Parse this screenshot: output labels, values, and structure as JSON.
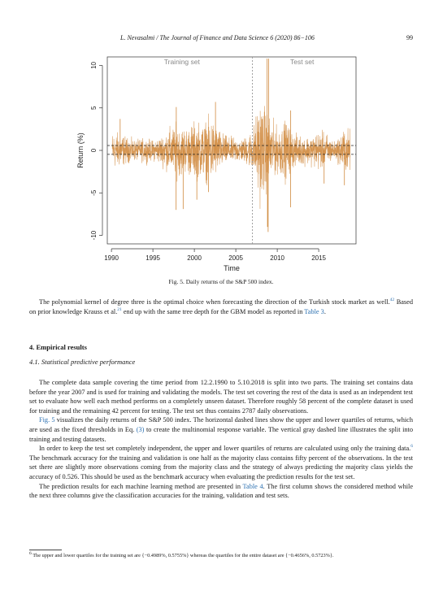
{
  "header": {
    "running_head": "L. Nevasalmi / The Journal of Finance and Data Science 6 (2020) 86−106",
    "page_number": "99"
  },
  "chart_data": {
    "type": "line",
    "xlabel": "Time",
    "ylabel": "Return (%)",
    "xlim": [
      1989.5,
      2019.5
    ],
    "ylim": [
      -11,
      11
    ],
    "x_ticks": [
      1990,
      1995,
      2000,
      2005,
      2010,
      2015
    ],
    "y_ticks": [
      10,
      5,
      0,
      -5,
      -10
    ],
    "annotations": [
      "Training set",
      "Test set"
    ],
    "split_year": 2007,
    "upper_quartile": 0.5723,
    "lower_quartile": -0.4656,
    "series_color": "#d08a3e",
    "volatility_profile": {
      "years": [
        1990,
        1991,
        1992,
        1993,
        1994,
        1995,
        1996,
        1997,
        1998,
        1999,
        2000,
        2001,
        2002,
        2003,
        2004,
        2005,
        2006,
        2007,
        2008,
        2009,
        2010,
        2011,
        2012,
        2013,
        2014,
        2015,
        2016,
        2017,
        2018
      ],
      "typical_abs_return": [
        0.9,
        0.85,
        0.6,
        0.5,
        0.6,
        0.5,
        0.7,
        1.1,
        1.3,
        1.1,
        1.4,
        1.35,
        1.6,
        1.0,
        0.65,
        0.6,
        0.6,
        1.0,
        2.6,
        1.7,
        1.1,
        1.45,
        0.8,
        0.7,
        0.7,
        0.95,
        0.8,
        0.4,
        1.05
      ]
    },
    "extremes": [
      {
        "x": 2008.78,
        "y": 11.6
      },
      {
        "x": 2008.82,
        "y": -9.0
      },
      {
        "x": 2008.9,
        "y": -9.6
      },
      {
        "x": 2008.95,
        "y": 10.8
      },
      {
        "x": 1997.8,
        "y": -7.0
      },
      {
        "x": 1997.82,
        "y": 5.1
      },
      {
        "x": 1998.65,
        "y": -6.9
      },
      {
        "x": 2001.7,
        "y": -4.9
      },
      {
        "x": 2002.55,
        "y": 5.7
      },
      {
        "x": 2011.6,
        "y": -6.7
      },
      {
        "x": 2011.62,
        "y": 4.7
      },
      {
        "x": 2000.3,
        "y": -5.8
      },
      {
        "x": 1991.05,
        "y": 3.7
      },
      {
        "x": 2015.65,
        "y": -3.9
      },
      {
        "x": 2018.1,
        "y": -4.1
      }
    ]
  },
  "figure": {
    "caption": "Fig. 5. Daily returns of the S&P 500 index."
  },
  "intro": {
    "t1": "The polynomial kernel of degree three is the optimal choice when forecasting the direction of the Turkish stock market as well.",
    "s1": "42",
    "t2": " Based on prior knowledge Krauss et al.",
    "s2": "21",
    "t3": " end up with the same tree depth for the GBM model as reported in ",
    "l1": "Table 3",
    "t4": "."
  },
  "section": {
    "heading": "4. Empirical results",
    "subheading": "4.1. Statistical predictive performance"
  },
  "para1": {
    "text": "The complete data sample covering the time period from 12.2.1990 to 5.10.2018 is split into two parts. The training set contains data before the year 2007 and is used for training and validating the models. The test set covering the rest of the data is used as an independent test set to evaluate how well each method performs on a completely unseen dataset. Therefore roughly 58 percent of the complete dataset is used for training and the remaining 42 percent for testing. The test set thus contains 2787 daily observations."
  },
  "para2": {
    "l1": "Fig. 5",
    "t1": " visualizes the daily returns of the S&P 500 index. The horizontal dashed lines show the upper and lower quartiles of returns, which are used as the fixed thresholds in Eq. ",
    "l2": "(3)",
    "t2": " to create the multinomial response variable. The vertical gray dashed line illustrates the split into training and testing datasets."
  },
  "para3": {
    "t1": "In order to keep the test set completely independent, the upper and lower quartiles of returns are calculated using only the training data.",
    "s1": "6",
    "t2": " The benchmark accuracy for the training and validation is one half as the majority class contains fifty percent of the observations. In the test set there are slightly more observations coming from the majority class and the strategy of always predicting the majority class yields the accuracy of 0.526. This should be used as the benchmark accuracy when evaluating the prediction results for the test set."
  },
  "para4": {
    "t1": "The prediction results for each machine learning method are presented in ",
    "l1": "Table 4",
    "t2": ". The first column shows the considered method while the next three columns give the classification accuracies for the training, validation and test sets."
  },
  "footnote": {
    "mark": "6",
    "text": " The upper and lower quartiles for the training set are {−0.4989%, 0.5755%} whereas the quartiles for the entire dataset are {−0.4656%, 0.5723%}."
  }
}
